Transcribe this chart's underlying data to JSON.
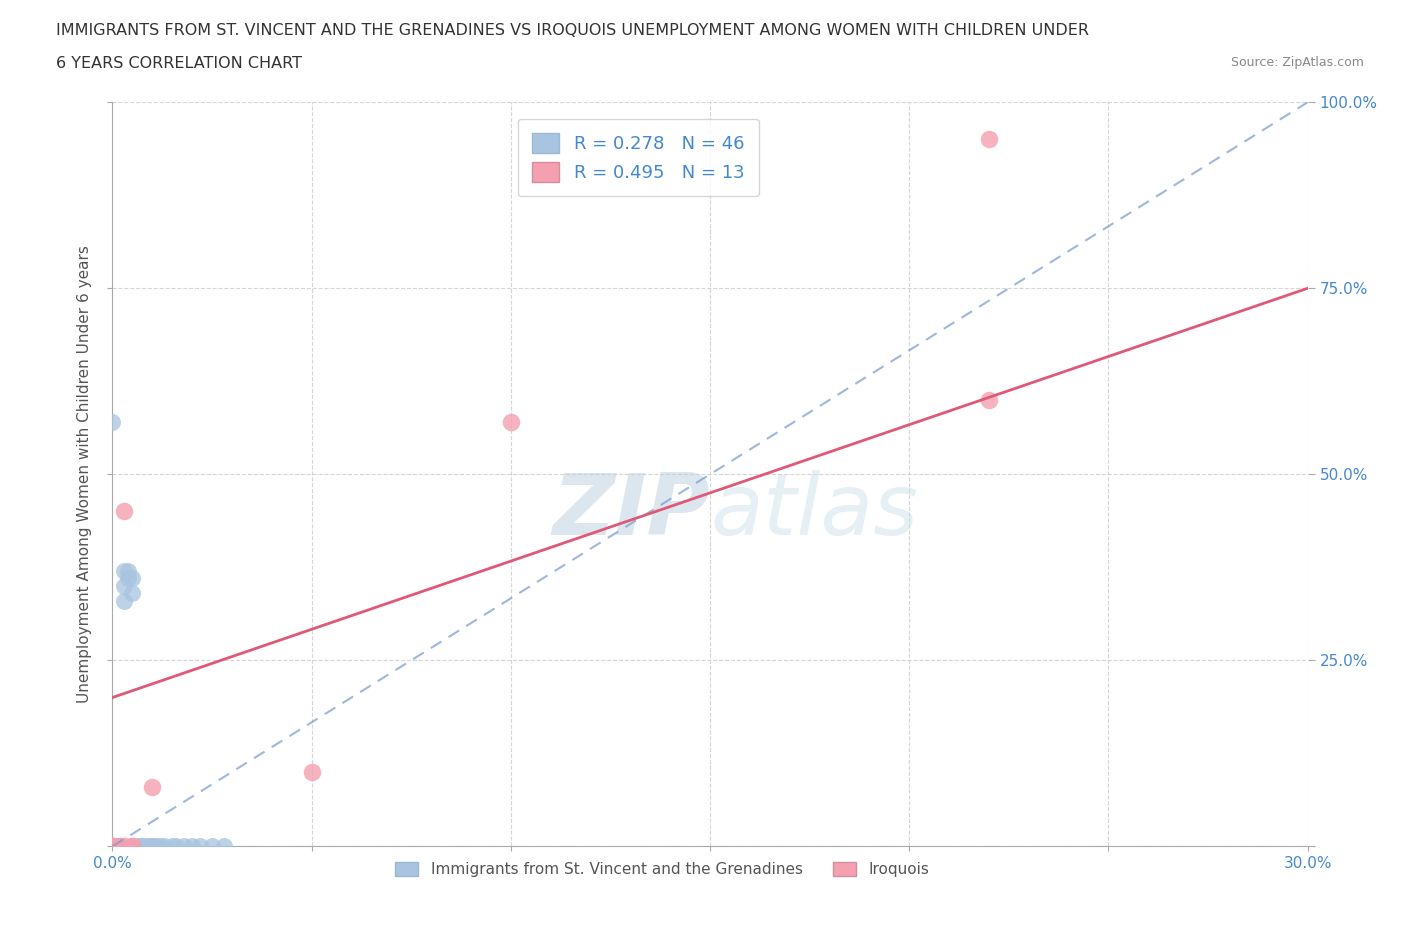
{
  "title_line1": "IMMIGRANTS FROM ST. VINCENT AND THE GRENADINES VS IROQUOIS UNEMPLOYMENT AMONG WOMEN WITH CHILDREN UNDER",
  "title_line2": "6 YEARS CORRELATION CHART",
  "source": "Source: ZipAtlas.com",
  "ylabel": "Unemployment Among Women with Children Under 6 years",
  "xlim": [
    0.0,
    0.3
  ],
  "ylim": [
    0.0,
    1.0
  ],
  "blue_R": 0.278,
  "blue_N": 46,
  "pink_R": 0.495,
  "pink_N": 13,
  "blue_color": "#a8c4e0",
  "pink_color": "#f4a0b0",
  "blue_line_color": "#7799cc",
  "pink_line_color": "#e05878",
  "watermark_color": "#c8dce8",
  "legend_label_blue": "Immigrants from St. Vincent and the Grenadines",
  "legend_label_pink": "Iroquois",
  "blue_x": [
    0.0,
    0.0,
    0.0,
    0.0,
    0.0,
    0.0,
    0.0,
    0.0,
    0.0,
    0.0,
    0.001,
    0.001,
    0.001,
    0.001,
    0.001,
    0.001,
    0.002,
    0.002,
    0.002,
    0.002,
    0.003,
    0.003,
    0.003,
    0.004,
    0.004,
    0.005,
    0.005,
    0.006,
    0.007,
    0.007,
    0.008,
    0.009,
    0.01,
    0.01,
    0.011,
    0.012,
    0.013,
    0.015,
    0.016,
    0.018,
    0.02,
    0.022,
    0.025,
    0.028,
    0.0,
    0.0
  ],
  "blue_y": [
    0.0,
    0.0,
    0.0,
    0.0,
    0.0,
    0.0,
    0.0,
    0.0,
    0.0,
    0.0,
    0.0,
    0.0,
    0.0,
    0.0,
    0.0,
    0.0,
    0.0,
    0.0,
    0.0,
    0.0,
    0.33,
    0.35,
    0.37,
    0.36,
    0.37,
    0.34,
    0.36,
    0.0,
    0.0,
    0.0,
    0.0,
    0.0,
    0.0,
    0.0,
    0.0,
    0.0,
    0.0,
    0.0,
    0.0,
    0.0,
    0.0,
    0.0,
    0.0,
    0.0,
    0.57,
    0.0
  ],
  "pink_x": [
    0.0,
    0.0,
    0.0,
    0.002,
    0.003,
    0.003,
    0.005,
    0.005,
    0.01,
    0.05,
    0.1,
    0.22,
    0.22
  ],
  "pink_y": [
    0.0,
    0.0,
    0.0,
    0.0,
    0.0,
    0.45,
    0.0,
    0.0,
    0.08,
    0.1,
    0.57,
    0.6,
    0.95
  ],
  "blue_trend": [
    0.0,
    0.0,
    0.3,
    1.0
  ],
  "pink_trend_x0": 0.0,
  "pink_trend_y0": 0.2,
  "pink_trend_x1": 0.3,
  "pink_trend_y1": 0.75
}
